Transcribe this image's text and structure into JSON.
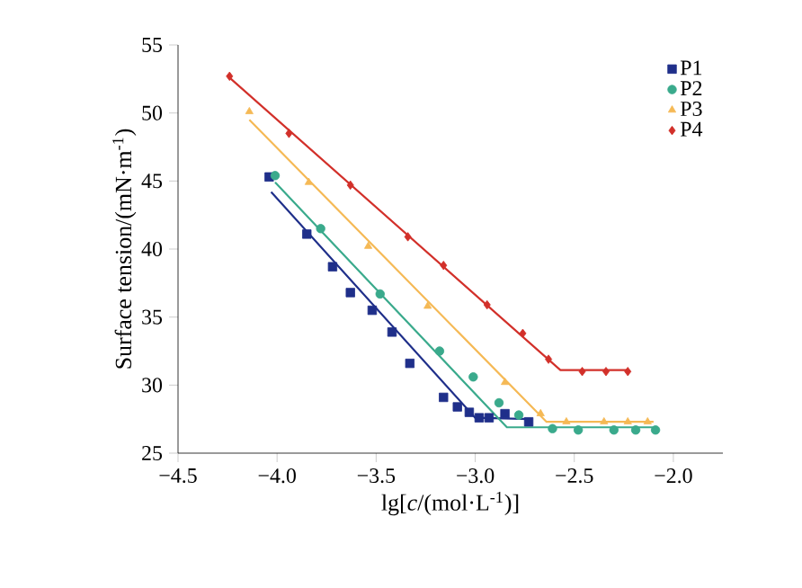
{
  "chart_data": {
    "type": "scatter",
    "xlabel": "lg[*c*/(mol·L$^{-1}$)]",
    "ylabel": "Surface tension/(mN·m$^{-1}$)",
    "xlim": [
      -4.5,
      -1.75
    ],
    "ylim": [
      25,
      55
    ],
    "xticks": [
      {
        "value": -4.5,
        "label": "−4.5"
      },
      {
        "value": -4.0,
        "label": "−4.0"
      },
      {
        "value": -3.5,
        "label": "−3.5"
      },
      {
        "value": -3.0,
        "label": "−3.0"
      },
      {
        "value": -2.5,
        "label": "−2.5"
      },
      {
        "value": -2.0,
        "label": "−2.0"
      }
    ],
    "yticks": [
      25,
      30,
      35,
      40,
      45,
      50,
      55
    ],
    "legend": "top right",
    "grid": false,
    "series": [
      {
        "name": "P1",
        "color": "#1f2f8a",
        "marker": "square",
        "x": [
          -4.04,
          -3.85,
          -3.72,
          -3.63,
          -3.52,
          -3.42,
          -3.33,
          -3.16,
          -3.09,
          -3.03,
          -2.98,
          -2.93,
          -2.85,
          -2.78,
          -2.73
        ],
        "values": [
          45.3,
          41.1,
          38.7,
          36.8,
          35.5,
          33.9,
          31.6,
          29.1,
          28.4,
          28.0,
          27.6,
          27.6,
          27.9,
          null,
          27.3
        ]
      },
      {
        "name": "P2",
        "color": "#3aaa8c",
        "marker": "circle",
        "x": [
          -4.01,
          -3.78,
          -3.48,
          -3.18,
          -3.01,
          -2.88,
          -2.78,
          -2.61,
          -2.48,
          -2.3,
          -2.19,
          -2.09
        ],
        "values": [
          45.4,
          41.5,
          36.7,
          32.5,
          30.6,
          28.7,
          27.8,
          26.8,
          26.7,
          26.7,
          26.7,
          26.7
        ]
      },
      {
        "name": "P3",
        "color": "#f5b955",
        "marker": "triangle",
        "x": [
          -4.14,
          -3.84,
          -3.54,
          -3.24,
          -2.85,
          -2.67,
          -2.54,
          -2.35,
          -2.23,
          -2.13
        ],
        "values": [
          50.1,
          44.9,
          40.2,
          35.8,
          30.2,
          27.9,
          27.3,
          27.3,
          27.3,
          27.3
        ]
      },
      {
        "name": "P4",
        "color": "#d2302a",
        "marker": "diamond",
        "x": [
          -4.24,
          -3.94,
          -3.63,
          -3.34,
          -3.16,
          -2.94,
          -2.76,
          -2.63,
          -2.46,
          -2.34,
          -2.23
        ],
        "values": [
          52.7,
          48.5,
          44.7,
          40.9,
          38.8,
          35.9,
          33.8,
          31.9,
          31.0,
          31.0,
          31.0
        ]
      },
      {
        "type": "line",
        "color": "#1f2f8a",
        "marker": "none",
        "x": [
          -4.03,
          -3.0,
          -2.72
        ],
        "values": [
          44.2,
          27.6,
          27.5
        ]
      },
      {
        "type": "line",
        "color": "#3aaa8c",
        "marker": "none",
        "x": [
          -4.01,
          -2.84,
          -2.08
        ],
        "values": [
          44.9,
          26.9,
          26.9
        ]
      },
      {
        "type": "line",
        "color": "#f5b955",
        "marker": "none",
        "x": [
          -4.14,
          -2.64,
          -2.1
        ],
        "values": [
          49.5,
          27.3,
          27.3
        ]
      },
      {
        "type": "line",
        "color": "#d2302a",
        "marker": "none",
        "x": [
          -4.24,
          -2.57,
          -2.23
        ],
        "values": [
          52.6,
          31.1,
          31.1
        ]
      }
    ]
  }
}
